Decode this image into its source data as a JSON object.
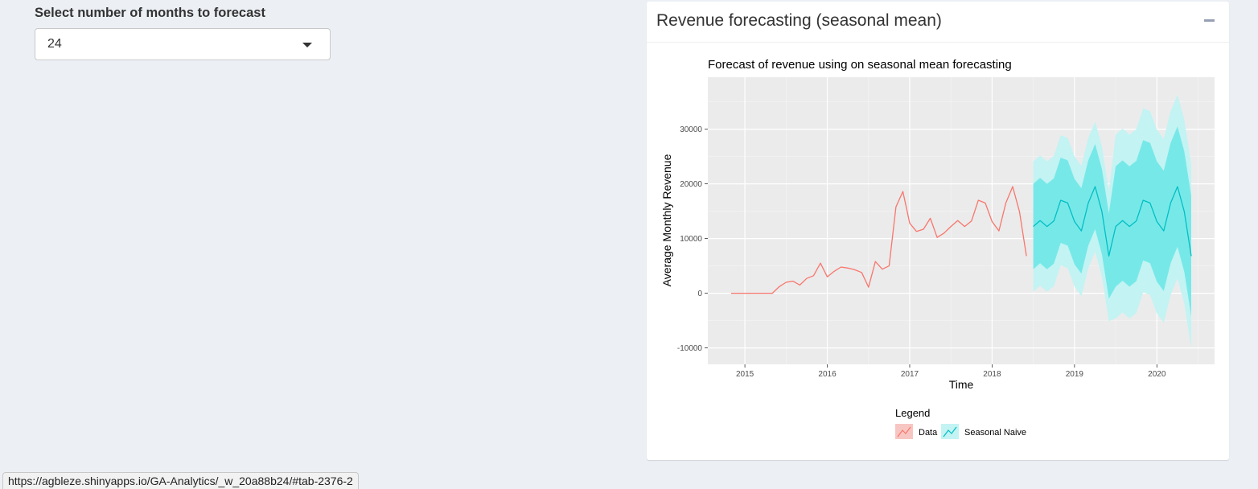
{
  "input": {
    "label": "Select number of months to forecast",
    "selected": "24"
  },
  "box": {
    "title": "Revenue forecasting (seasonal mean)"
  },
  "status_url": "https://agbleze.shinyapps.io/GA-Analytics/_w_20a88b24/#tab-2376-2",
  "colors": {
    "data": "#f8766d",
    "forecast": "#00bfc4",
    "band80": "#77e8e8",
    "band95": "#c3f3f3",
    "panel": "#ebebeb"
  },
  "chart_data": {
    "type": "line",
    "title": "Forecast of revenue using on seasonal mean forecasting",
    "xlabel": "Time",
    "ylabel": "Average Monthly Revenue",
    "xlim": [
      2014.55,
      2020.7
    ],
    "ylim": [
      -13000,
      39500
    ],
    "xticks": [
      2015,
      2016,
      2017,
      2018,
      2019,
      2020
    ],
    "yticks": [
      -10000,
      0,
      10000,
      20000,
      30000
    ],
    "ytick_labels": [
      "-10000",
      "0",
      "10000",
      "20000",
      "30000"
    ],
    "grid": true,
    "legend": {
      "title": "Legend",
      "position": "bottom",
      "entries": [
        "Data",
        "Seasonal Naive"
      ]
    },
    "series": [
      {
        "name": "Data",
        "x": [
          2014.833,
          2014.917,
          2015.0,
          2015.083,
          2015.167,
          2015.25,
          2015.333,
          2015.417,
          2015.5,
          2015.583,
          2015.667,
          2015.75,
          2015.833,
          2015.917,
          2016.0,
          2016.083,
          2016.167,
          2016.25,
          2016.333,
          2016.417,
          2016.5,
          2016.583,
          2016.667,
          2016.75,
          2016.833,
          2016.917,
          2017.0,
          2017.083,
          2017.167,
          2017.25,
          2017.333,
          2017.417,
          2017.5,
          2017.583,
          2017.667,
          2017.75,
          2017.833,
          2017.917,
          2018.0,
          2018.083,
          2018.167,
          2018.25,
          2018.333,
          2018.417
        ],
        "y": [
          0,
          0,
          0,
          0,
          0,
          0,
          0,
          1200,
          2000,
          2200,
          1500,
          2700,
          3200,
          5500,
          3000,
          4000,
          4800,
          4600,
          4300,
          3800,
          1100,
          5800,
          4400,
          5000,
          15800,
          18600,
          12800,
          11300,
          11700,
          13700,
          10200,
          11000,
          12200,
          13300,
          12200,
          13200,
          17000,
          16500,
          13100,
          11400,
          16500,
          19500,
          14900,
          6800
        ]
      },
      {
        "name": "Seasonal Naive",
        "x": [
          2018.5,
          2018.583,
          2018.667,
          2018.75,
          2018.833,
          2018.917,
          2019.0,
          2019.083,
          2019.167,
          2019.25,
          2019.333,
          2019.417,
          2019.5,
          2019.583,
          2019.667,
          2019.75,
          2019.833,
          2019.917,
          2020.0,
          2020.083,
          2020.167,
          2020.25,
          2020.333,
          2020.417
        ],
        "y": [
          12200,
          13300,
          12200,
          13200,
          17000,
          16500,
          13100,
          11400,
          16500,
          19500,
          14900,
          6800,
          12200,
          13300,
          12200,
          13200,
          17000,
          16500,
          13100,
          11400,
          16500,
          19500,
          14900,
          6800
        ],
        "lo80": [
          4400,
          5500,
          4400,
          5400,
          9200,
          8700,
          5300,
          3600,
          8700,
          11700,
          7100,
          -1000,
          1200,
          2300,
          1200,
          2200,
          6000,
          5500,
          2100,
          400,
          5500,
          8500,
          3900,
          -4200
        ],
        "hi80": [
          20000,
          21100,
          20000,
          21000,
          24800,
          24300,
          20900,
          19200,
          24300,
          27300,
          22700,
          14600,
          23200,
          24300,
          23200,
          24200,
          28000,
          27500,
          24100,
          22400,
          27500,
          30500,
          25900,
          17800
        ],
        "lo95": [
          300,
          1400,
          300,
          1300,
          5100,
          4600,
          1200,
          -500,
          4600,
          7600,
          3000,
          -5100,
          -4600,
          -3500,
          -4600,
          -3600,
          200,
          -300,
          -3700,
          -5400,
          -300,
          2700,
          -1900,
          -10000
        ],
        "hi95": [
          24100,
          25200,
          24100,
          25100,
          28900,
          28400,
          25000,
          23300,
          28400,
          31400,
          26800,
          18700,
          29000,
          30100,
          29000,
          30000,
          33800,
          33300,
          29900,
          28200,
          33300,
          36300,
          31700,
          23600
        ]
      }
    ]
  }
}
